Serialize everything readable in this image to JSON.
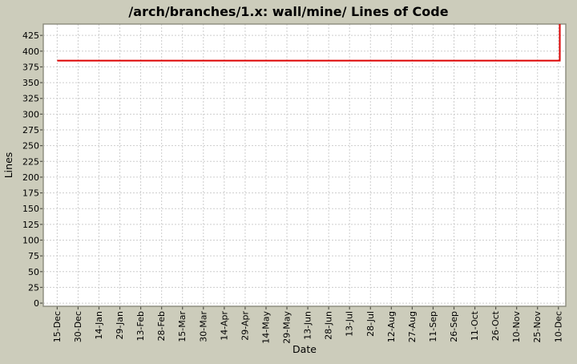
{
  "chart_data": {
    "type": "line",
    "title": "/arch/branches/1.x: wall/mine/ Lines of Code",
    "xlabel": "Date",
    "ylabel": "Lines",
    "x_tick_labels": [
      "15-Dec",
      "30-Dec",
      "14-Jan",
      "29-Jan",
      "13-Feb",
      "28-Feb",
      "15-Mar",
      "30-Mar",
      "14-Apr",
      "29-Apr",
      "14-May",
      "29-May",
      "13-Jun",
      "28-Jun",
      "13-Jul",
      "28-Jul",
      "12-Aug",
      "27-Aug",
      "11-Sep",
      "26-Sep",
      "11-Oct",
      "26-Oct",
      "10-Nov",
      "25-Nov",
      "10-Dec"
    ],
    "x_tick_interval_days": 15,
    "y_ticks": [
      0,
      25,
      50,
      75,
      100,
      125,
      150,
      175,
      200,
      225,
      250,
      275,
      300,
      325,
      350,
      375,
      400,
      425
    ],
    "ylim": [
      -5,
      443
    ],
    "grid": true,
    "legend": false,
    "colors": {
      "background": "#ccccbb",
      "plot_background": "#ffffff",
      "grid": "#cdcdcd",
      "border": "#8a8a7c",
      "tick": "#55554b",
      "text": "#000000"
    },
    "series": [
      {
        "name": "lines-of-code",
        "color": "#dd0000",
        "points": [
          {
            "day": 0,
            "value": 385
          },
          {
            "day": 361,
            "value": 385
          },
          {
            "day": 361,
            "value": 443
          }
        ]
      }
    ]
  }
}
